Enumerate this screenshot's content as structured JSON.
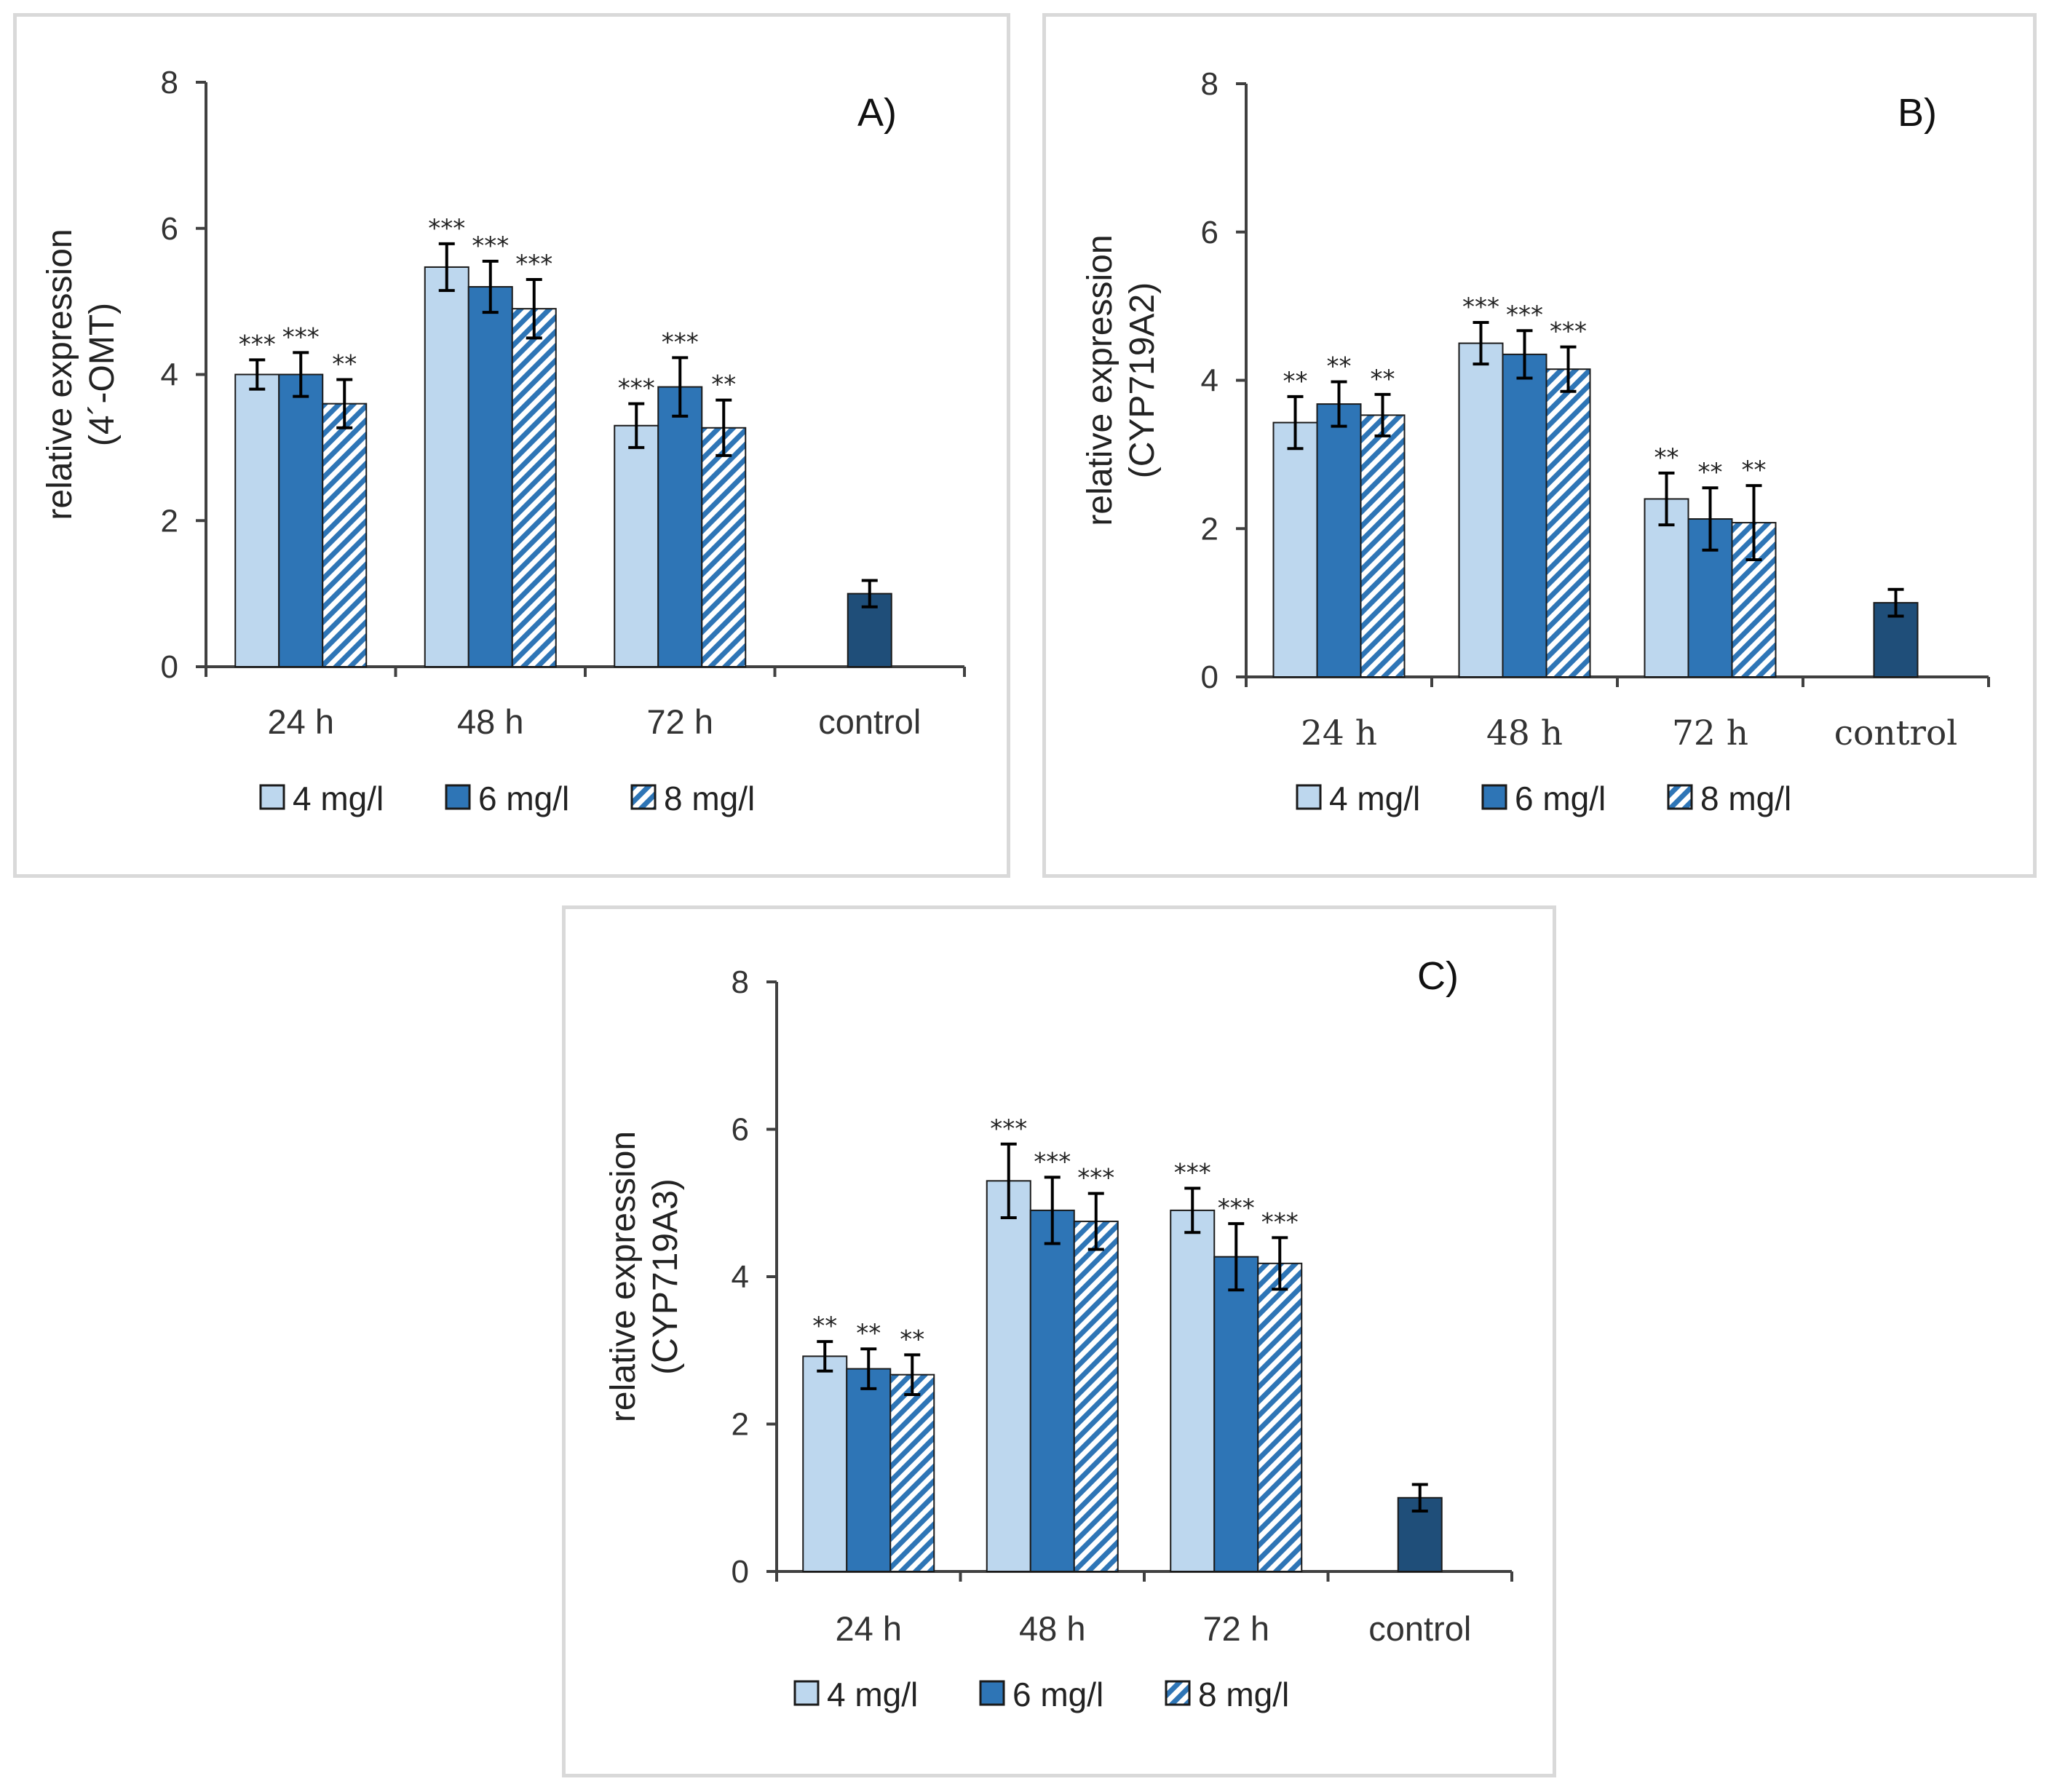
{
  "colors": {
    "dose_4": "#bdd7ee",
    "dose_6": "#2e75b6",
    "dose_8_hatch": "#2e75b6",
    "control": "#1f4e79",
    "axis": "#404040",
    "error_bar": "#000000"
  },
  "legend": {
    "items": [
      {
        "label": "4 mg/l",
        "style": "solid-light"
      },
      {
        "label": "6 mg/l",
        "style": "solid-dark"
      },
      {
        "label": "8 mg/l",
        "style": "hatched"
      }
    ]
  },
  "chart_data": [
    {
      "panel": "A)",
      "type": "bar",
      "ylabel": "relative expression",
      "ylabel_gene": "(4´-OMT)",
      "ylim": [
        0,
        8
      ],
      "yticks": [
        "0",
        "2",
        "4",
        "6",
        "8"
      ],
      "categories": [
        "24 h",
        "48 h",
        "72 h",
        "control"
      ],
      "series": [
        {
          "name": "4 mg/l",
          "values": [
            4.0,
            5.47,
            3.3,
            null
          ],
          "errors": [
            0.2,
            0.32,
            0.3,
            null
          ],
          "sig": [
            "***",
            "***",
            "***",
            null
          ]
        },
        {
          "name": "6 mg/l",
          "values": [
            4.0,
            5.2,
            3.83,
            null
          ],
          "errors": [
            0.3,
            0.35,
            0.4,
            null
          ],
          "sig": [
            "***",
            "***",
            "***",
            null
          ]
        },
        {
          "name": "8 mg/l",
          "values": [
            3.6,
            4.9,
            3.27,
            null
          ],
          "errors": [
            0.33,
            0.4,
            0.38,
            null
          ],
          "sig": [
            "**",
            "***",
            "**",
            null
          ]
        }
      ],
      "control": {
        "value": 1.0,
        "error": 0.18
      }
    },
    {
      "panel": "B)",
      "type": "bar",
      "ylabel": "relative expression",
      "ylabel_gene": "(CYP719A2)",
      "ylim": [
        0,
        8
      ],
      "yticks": [
        "0",
        "2",
        "4",
        "6",
        "8"
      ],
      "categories": [
        "24 h",
        "48 h",
        "72 h",
        "control"
      ],
      "series": [
        {
          "name": "4 mg/l",
          "values": [
            3.43,
            4.5,
            2.4,
            null
          ],
          "errors": [
            0.35,
            0.28,
            0.35,
            null
          ],
          "sig": [
            "**",
            "***",
            "**",
            null
          ]
        },
        {
          "name": "6 mg/l",
          "values": [
            3.68,
            4.35,
            2.13,
            null
          ],
          "errors": [
            0.3,
            0.32,
            0.42,
            null
          ],
          "sig": [
            "**",
            "***",
            "**",
            null
          ]
        },
        {
          "name": "8 mg/l",
          "values": [
            3.53,
            4.15,
            2.08,
            null
          ],
          "errors": [
            0.28,
            0.3,
            0.5,
            null
          ],
          "sig": [
            "**",
            "***",
            "**",
            null
          ]
        }
      ],
      "control": {
        "value": 1.0,
        "error": 0.18
      }
    },
    {
      "panel": "C)",
      "type": "bar",
      "ylabel": "relative expression",
      "ylabel_gene": "(CYP719A3)",
      "ylim": [
        0,
        8
      ],
      "yticks": [
        "0",
        "2",
        "4",
        "6",
        "8"
      ],
      "categories": [
        "24 h",
        "48 h",
        "72 h",
        "control"
      ],
      "series": [
        {
          "name": "4 mg/l",
          "values": [
            2.92,
            5.3,
            4.9,
            null
          ],
          "errors": [
            0.2,
            0.5,
            0.3,
            null
          ],
          "sig": [
            "**",
            "***",
            "***",
            null
          ]
        },
        {
          "name": "6 mg/l",
          "values": [
            2.75,
            4.9,
            4.27,
            null
          ],
          "errors": [
            0.27,
            0.45,
            0.45,
            null
          ],
          "sig": [
            "**",
            "***",
            "***",
            null
          ]
        },
        {
          "name": "8 mg/l",
          "values": [
            2.67,
            4.75,
            4.18,
            null
          ],
          "errors": [
            0.27,
            0.38,
            0.35,
            null
          ],
          "sig": [
            "**",
            "***",
            "***",
            null
          ]
        }
      ],
      "control": {
        "value": 1.0,
        "error": 0.18
      }
    }
  ]
}
